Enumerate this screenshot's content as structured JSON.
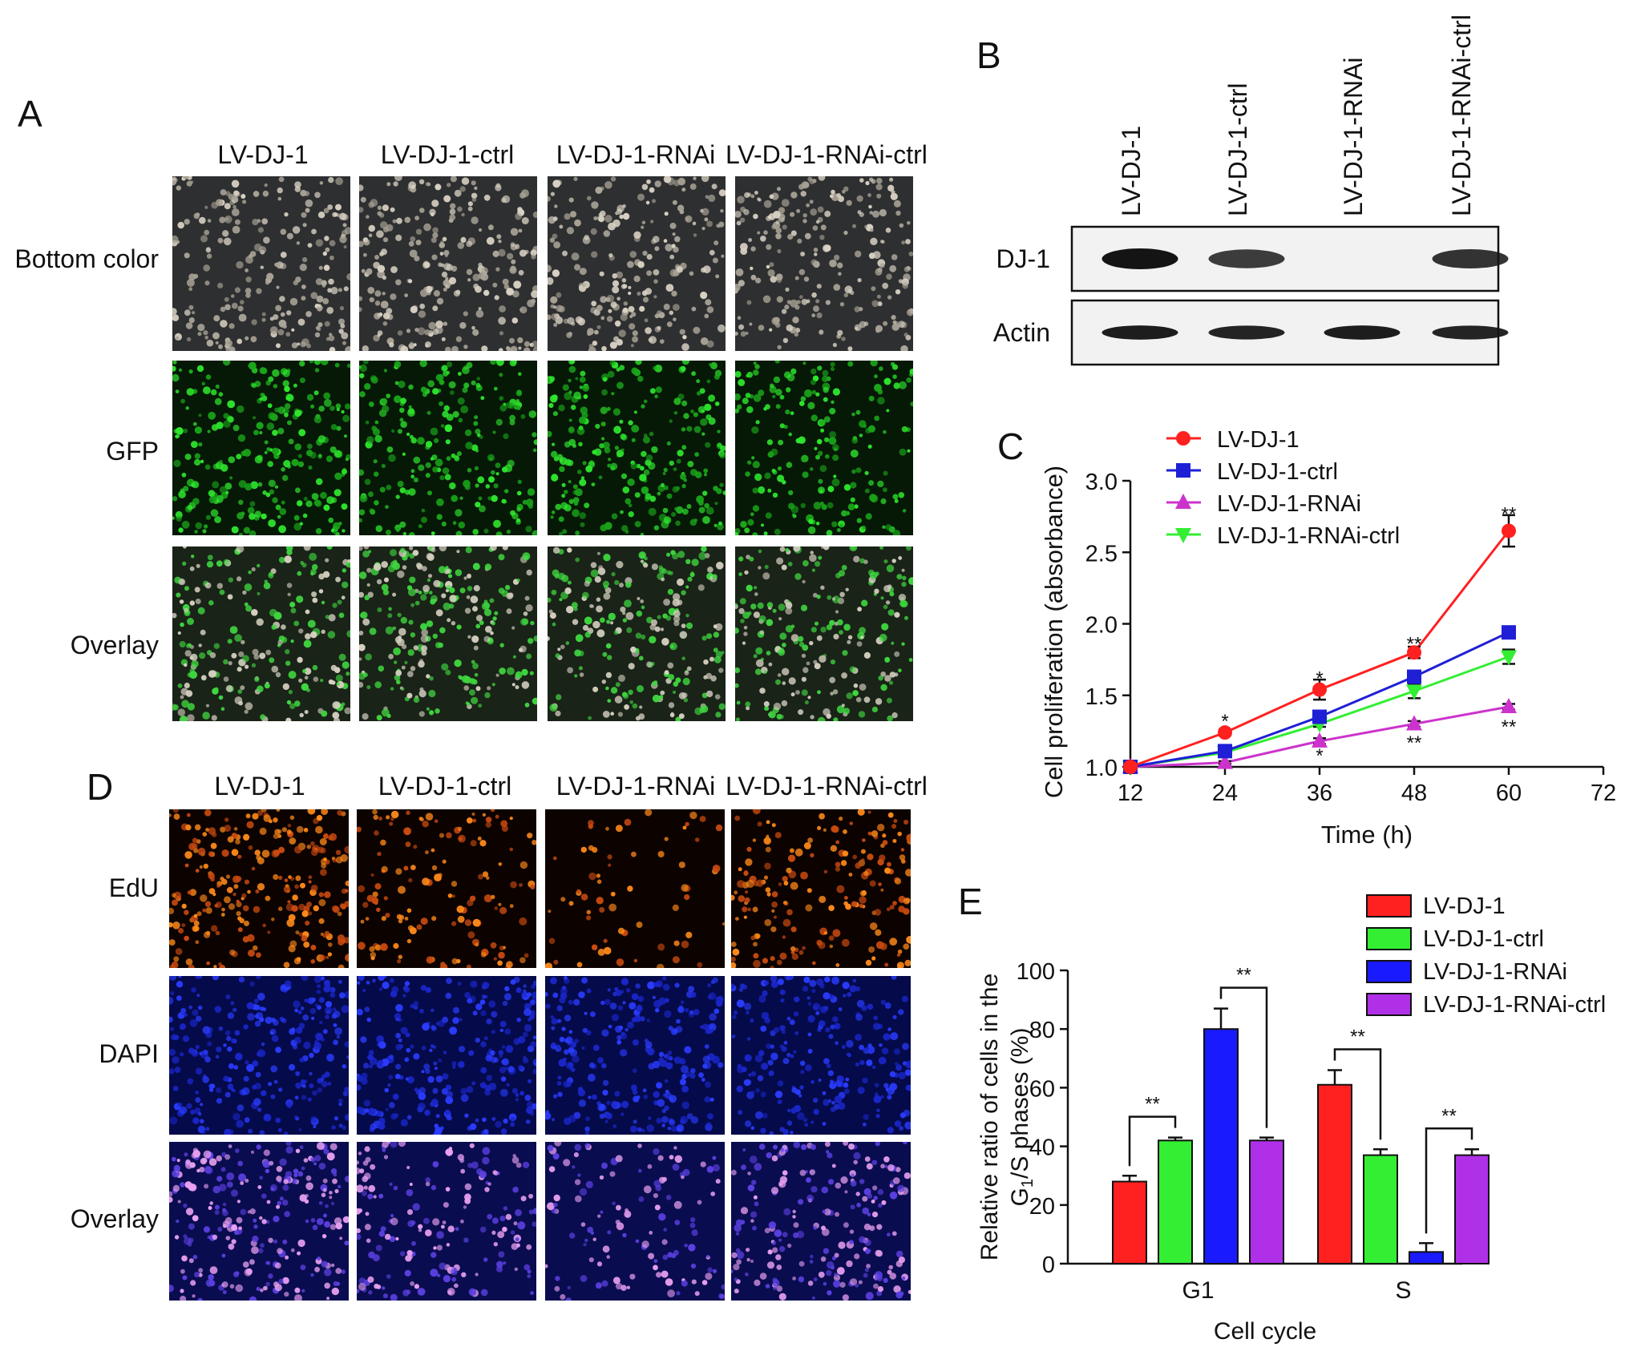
{
  "panel_labels": {
    "a": "A",
    "b": "B",
    "c": "C",
    "d": "D",
    "e": "E"
  },
  "groups": [
    "LV-DJ-1",
    "LV-DJ-1-ctrl",
    "LV-DJ-1-RNAi",
    "LV-DJ-1-RNAi-ctrl"
  ],
  "panel_a": {
    "rows": [
      "Bottom color",
      "GFP",
      "Overlay"
    ]
  },
  "panel_b": {
    "lanes": [
      "LV-DJ-1",
      "LV-DJ-1-ctrl",
      "LV-DJ-1-RNAi",
      "LV-DJ-1-RNAi-ctrl"
    ],
    "proteins": [
      "DJ-1",
      "Actin"
    ],
    "band_intensity": {
      "DJ-1": [
        1.0,
        0.75,
        0.0,
        0.8
      ],
      "Actin": [
        0.95,
        0.9,
        0.95,
        0.9
      ]
    }
  },
  "panel_d": {
    "rows": [
      "EdU",
      "DAPI",
      "Overlay"
    ]
  },
  "colors": {
    "red": "#ff2020",
    "blue": "#1f1fd6",
    "magenta": "#cc33cc",
    "green": "#33ee33",
    "bar_blue": "#1a1aff",
    "bar_purple": "#b030e8"
  },
  "chart_data": [
    {
      "type": "line",
      "panel": "C",
      "xlabel": "Time (h)",
      "ylabel": "Cell proliferation (absorbance)",
      "xlim": [
        12,
        72
      ],
      "ylim": [
        1.0,
        3.0
      ],
      "xticks": [
        12,
        24,
        36,
        48,
        60,
        72
      ],
      "yticks": [
        1.0,
        1.5,
        2.0,
        2.5,
        3.0
      ],
      "ytick_labels": [
        "1.0",
        "1.5",
        "2.0",
        "2.5",
        "3.0"
      ],
      "legend_position": "top",
      "x": [
        12,
        24,
        36,
        48,
        60
      ],
      "series": [
        {
          "name": "LV-DJ-1",
          "values": [
            1.0,
            1.24,
            1.54,
            1.8,
            2.65
          ],
          "errors": [
            0,
            0.02,
            0.07,
            0.04,
            0.11
          ],
          "marker": "circle",
          "color": "#ff2020"
        },
        {
          "name": "LV-DJ-1-ctrl",
          "values": [
            1.0,
            1.11,
            1.35,
            1.63,
            1.94
          ],
          "errors": [
            0,
            0.01,
            0.02,
            0.03,
            0.02
          ],
          "marker": "square",
          "color": "#1f1fd6"
        },
        {
          "name": "LV-DJ-1-RNAi",
          "values": [
            1.0,
            1.03,
            1.18,
            1.3,
            1.42
          ],
          "errors": [
            0,
            0.01,
            0.02,
            0.02,
            0.02
          ],
          "marker": "triangle-up",
          "color": "#cc33cc"
        },
        {
          "name": "LV-DJ-1-RNAi-ctrl",
          "values": [
            1.0,
            1.1,
            1.3,
            1.53,
            1.77
          ],
          "errors": [
            0,
            0.01,
            0.02,
            0.05,
            0.05
          ],
          "marker": "triangle-down",
          "color": "#33ee33"
        }
      ],
      "annotations": [
        {
          "x": 24,
          "y": 1.33,
          "text": "*"
        },
        {
          "x": 36,
          "y": 1.63,
          "text": "*"
        },
        {
          "x": 36,
          "y": 1.09,
          "text": "*"
        },
        {
          "x": 48,
          "y": 1.87,
          "text": "**"
        },
        {
          "x": 48,
          "y": 1.18,
          "text": "**"
        },
        {
          "x": 60,
          "y": 2.78,
          "text": "**"
        },
        {
          "x": 60,
          "y": 1.29,
          "text": "**"
        }
      ]
    },
    {
      "type": "bar",
      "panel": "E",
      "xlabel": "Cell cycle",
      "ylabel_line1": "Relative ratio of cells in the",
      "ylabel_line2_pre": "G",
      "ylabel_line2_sub": "1",
      "ylabel_line2_post": "/S phases (%)",
      "ylim": [
        0,
        100
      ],
      "yticks": [
        0,
        20,
        40,
        60,
        80,
        100
      ],
      "categories": [
        "G1",
        "S"
      ],
      "legend_position": "top-right",
      "series": [
        {
          "name": "LV-DJ-1",
          "values": [
            28,
            61
          ],
          "errors": [
            2,
            5
          ],
          "color": "#ff2020"
        },
        {
          "name": "LV-DJ-1-ctrl",
          "values": [
            42,
            37
          ],
          "errors": [
            1,
            2
          ],
          "color": "#33ee33"
        },
        {
          "name": "LV-DJ-1-RNAi",
          "values": [
            80,
            4
          ],
          "errors": [
            7,
            3
          ],
          "color": "#1a1aff"
        },
        {
          "name": "LV-DJ-1-RNAi-ctrl",
          "values": [
            42,
            37
          ],
          "errors": [
            1,
            2
          ],
          "color": "#b030e8"
        }
      ],
      "significance": [
        {
          "category": 0,
          "from": 0,
          "to": 1,
          "text": "**"
        },
        {
          "category": 0,
          "from": 2,
          "to": 3,
          "text": "**"
        },
        {
          "category": 1,
          "from": 0,
          "to": 1,
          "text": "**"
        },
        {
          "category": 1,
          "from": 2,
          "to": 3,
          "text": "**"
        }
      ]
    }
  ]
}
